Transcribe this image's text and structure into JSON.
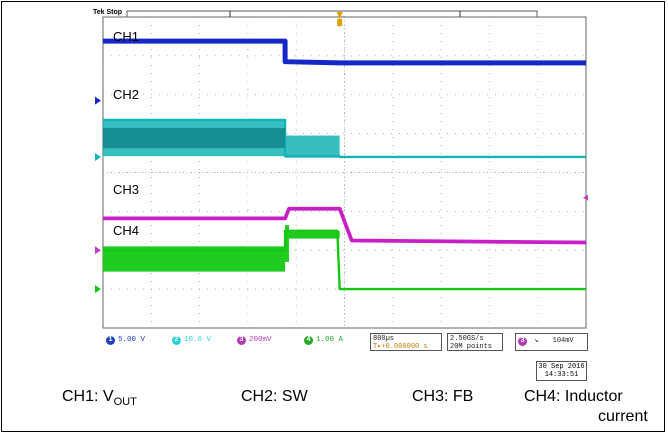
{
  "title_tag": "Tek Stop",
  "channel_labels": [
    "CH1",
    "CH2",
    "CH3",
    "CH4"
  ],
  "status": {
    "ch1": {
      "num": "1",
      "scale": "5.00 V",
      "color": "#1f3fbf"
    },
    "ch2": {
      "num": "2",
      "scale": "10.0 V",
      "color": "#2ad0d8"
    },
    "ch3": {
      "num": "3",
      "scale": "200mV",
      "color": "#b03ab0"
    },
    "ch4": {
      "num": "4",
      "scale": "1.00 A",
      "color": "#22aa22"
    },
    "timebase": "800µs",
    "trigger_pos": "T▸+0.000000 s",
    "sample_rate": "2.50GS/s",
    "record": "20M points",
    "trigger_source": "3",
    "trigger_level": "104mV"
  },
  "date_line1": "30 Sep  2016",
  "date_line2": "14:33:51",
  "captions": {
    "ch1_prefix": "CH1: V",
    "ch1_sub": "OUT",
    "ch2": "CH2: SW",
    "ch3": "CH3: FB",
    "ch4_line1": "CH4: Inductor",
    "ch4_line2": "current"
  },
  "colors": {
    "ch1": "#1428c8",
    "ch2": "#14b4b4",
    "ch3": "#c81ec8",
    "ch4": "#14c814",
    "grid": "#9a9a9a"
  },
  "chart_data": {
    "type": "line",
    "title": "",
    "xlabel": "",
    "ylabel": "",
    "grid": true,
    "xlim": [
      0,
      10
    ],
    "ylim": [
      -4,
      4
    ],
    "x_unit": "divisions (800µs/div)",
    "y_unit": "divisions",
    "series": [
      {
        "name": "CH1",
        "points": [
          [
            0,
            3.38
          ],
          [
            3.77,
            3.38
          ],
          [
            3.77,
            2.85
          ],
          [
            4.9,
            2.82
          ],
          [
            10,
            2.82
          ]
        ],
        "band": 0.08
      },
      {
        "name": "CH2",
        "points": [
          [
            0,
            1.35
          ],
          [
            3.77,
            1.35
          ],
          [
            3.77,
            0.42
          ],
          [
            4.9,
            0.42
          ],
          [
            4.9,
            0.4
          ],
          [
            10,
            0.4
          ]
        ],
        "band_segments": [
          [
            0,
            3.77,
            0.42,
            1.35
          ],
          [
            3.77,
            4.9,
            0.38,
            0.95
          ]
        ]
      },
      {
        "name": "CH3",
        "points": [
          [
            0,
            -1.18
          ],
          [
            3.77,
            -1.18
          ],
          [
            3.85,
            -0.93
          ],
          [
            4.9,
            -0.93
          ],
          [
            5.15,
            -1.75
          ],
          [
            10,
            -1.8
          ]
        ],
        "band": 0.06
      },
      {
        "name": "CH4",
        "points": [
          [
            0,
            -2.0
          ],
          [
            3.77,
            -2.0
          ],
          [
            3.77,
            -1.5
          ],
          [
            4.85,
            -1.5
          ],
          [
            4.9,
            -3.0
          ],
          [
            10,
            -3.0
          ]
        ],
        "band_segments": [
          [
            0,
            3.77,
            -2.55,
            -1.9
          ],
          [
            3.77,
            3.85,
            -2.3,
            -1.35
          ],
          [
            3.85,
            4.9,
            -1.7,
            -1.5
          ]
        ]
      }
    ]
  }
}
